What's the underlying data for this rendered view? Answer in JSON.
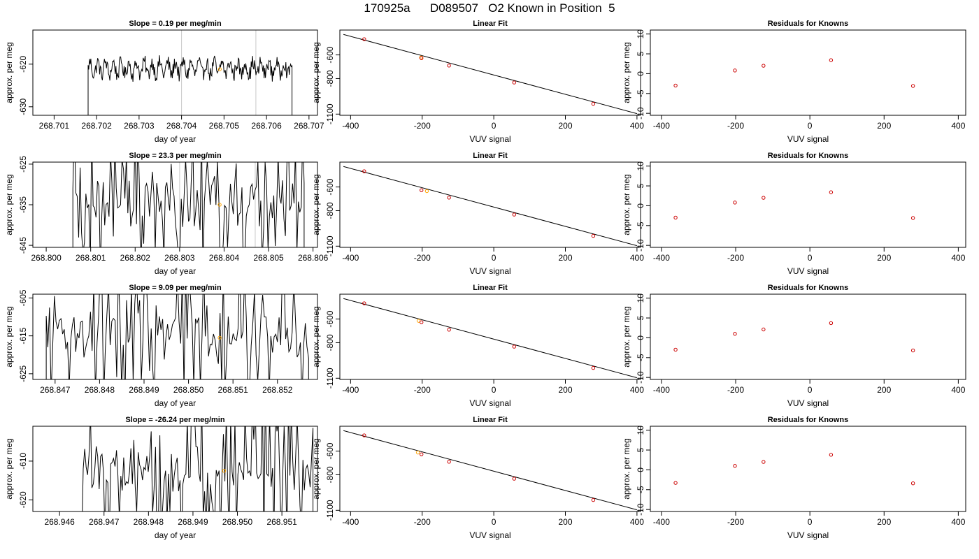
{
  "title": "170925a      D089507   O2 Known in Position  5",
  "colors": {
    "trace": "#000000",
    "known_points": "#cc0000",
    "sample_point": "#ffa500",
    "marker_lines": "#c8c8c8",
    "fit_line": "#000000"
  },
  "chart_data": [
    {
      "type": "line",
      "row": 1,
      "panel": "time-series",
      "title": "Slope =  0.19  per meg/min",
      "xlabel": "day of year",
      "ylabel": "approx. per meg",
      "xlim": [
        268.7005,
        268.7072
      ],
      "ylim": [
        -632,
        -612
      ],
      "xticks": [
        268.701,
        268.702,
        268.703,
        268.704,
        268.705,
        268.706,
        268.707
      ],
      "yticks": [
        -630,
        -620
      ],
      "markers": [
        268.704,
        268.70575
      ],
      "sample_point": {
        "x": 268.7049,
        "y": -621.2
      },
      "series": [
        {
          "x_start": 268.7018,
          "x_end": 268.7066,
          "baseline": -621,
          "amplitude": 2.5,
          "style": "smooth",
          "edge_dip": -640
        }
      ]
    },
    {
      "type": "scatter",
      "row": 1,
      "panel": "linear-fit",
      "title": "Linear Fit",
      "xlabel": "VUV signal",
      "ylabel": "approx. per meg",
      "xlim": [
        -430,
        410
      ],
      "ylim": [
        -1110,
        -390
      ],
      "xticks": [
        -400,
        -200,
        0,
        200,
        400
      ],
      "yticks": [
        -1100,
        -800,
        -600
      ],
      "fit": {
        "x": [
          -420,
          400
        ],
        "y": [
          -427,
          -1096
        ]
      },
      "knowns": {
        "x": [
          -362,
          -202,
          -125,
          57,
          278
        ],
        "y": [
          -467,
          -627,
          -690,
          -833,
          -1013
        ]
      },
      "sample": {
        "x": -203,
        "y": -622
      }
    },
    {
      "type": "scatter",
      "row": 1,
      "panel": "residuals",
      "title": "Residuals for Knowns",
      "xlabel": "VUV signal",
      "ylabel": "approx. per meg",
      "xlim": [
        -430,
        420
      ],
      "ylim": [
        -10.5,
        11
      ],
      "xticks": [
        -400,
        -200,
        0,
        200,
        400
      ],
      "yticks": [
        -10,
        -5,
        0,
        5,
        10
      ],
      "knowns": {
        "x": [
          -362,
          -202,
          -125,
          57,
          278
        ],
        "y": [
          -3.0,
          0.8,
          2.0,
          3.4,
          -3.1
        ]
      }
    },
    {
      "type": "line",
      "row": 2,
      "panel": "time-series",
      "title": "Slope =  23.3  per meg/min",
      "xlabel": "day of year",
      "ylabel": "approx. per meg",
      "xlim": [
        268.7997,
        268.8061
      ],
      "ylim": [
        -645.5,
        -624.5
      ],
      "xticks": [
        268.8,
        268.801,
        268.802,
        268.803,
        268.804,
        268.805,
        268.806
      ],
      "yticks": [
        -645,
        -635,
        -625
      ],
      "markers": [
        268.803,
        268.8047
      ],
      "sample_point": {
        "x": 268.8039,
        "y": -635
      },
      "series": [
        {
          "x_start": 268.8006,
          "x_end": 268.8058,
          "baseline": -635,
          "amplitude": 40,
          "style": "noisy",
          "edge_dip": -660
        }
      ]
    },
    {
      "type": "scatter",
      "row": 2,
      "panel": "linear-fit",
      "title": "Linear Fit",
      "xlabel": "VUV signal",
      "ylabel": "approx. per meg",
      "xlim": [
        -430,
        410
      ],
      "ylim": [
        -1110,
        -390
      ],
      "xticks": [
        -400,
        -200,
        0,
        200,
        400
      ],
      "yticks": [
        -1100,
        -800,
        -600
      ],
      "fit": {
        "x": [
          -420,
          400
        ],
        "y": [
          -427,
          -1096
        ]
      },
      "knowns": {
        "x": [
          -362,
          -202,
          -125,
          57,
          278
        ],
        "y": [
          -467,
          -627,
          -690,
          -833,
          -1013
        ]
      },
      "sample": {
        "x": -187,
        "y": -635
      }
    },
    {
      "type": "scatter",
      "row": 2,
      "panel": "residuals",
      "title": "Residuals for Knowns",
      "xlabel": "VUV signal",
      "ylabel": "approx. per meg",
      "xlim": [
        -430,
        420
      ],
      "ylim": [
        -10.5,
        11
      ],
      "xticks": [
        -400,
        -200,
        0,
        200,
        400
      ],
      "yticks": [
        -10,
        -5,
        0,
        5,
        10
      ],
      "knowns": {
        "x": [
          -362,
          -202,
          -125,
          57,
          278
        ],
        "y": [
          -3.0,
          0.8,
          2.0,
          3.4,
          -3.1
        ]
      }
    },
    {
      "type": "line",
      "row": 3,
      "panel": "time-series",
      "title": "Slope =  9.09  per meg/min",
      "xlabel": "day of year",
      "ylabel": "approx. per meg",
      "xlim": [
        268.8465,
        268.8529
      ],
      "ylim": [
        -626.5,
        -604
      ],
      "xticks": [
        268.847,
        268.848,
        268.849,
        268.85,
        268.851,
        268.852
      ],
      "yticks": [
        -625,
        -615,
        -605
      ],
      "markers": [],
      "sample_point": {
        "x": 268.8507,
        "y": -615.5
      },
      "series": [
        {
          "x_start": 268.8468,
          "x_end": 268.8527,
          "baseline": -615,
          "amplitude": 40,
          "style": "noisy",
          "edge_dip": -640
        }
      ]
    },
    {
      "type": "scatter",
      "row": 3,
      "panel": "linear-fit",
      "title": "Linear Fit",
      "xlabel": "VUV signal",
      "ylabel": "approx. per meg",
      "xlim": [
        -430,
        410
      ],
      "ylim": [
        -1110,
        -390
      ],
      "xticks": [
        -400,
        -200,
        0,
        200,
        400
      ],
      "yticks": [
        -1100,
        -800,
        -600
      ],
      "fit": {
        "x": [
          -420,
          400
        ],
        "y": [
          -427,
          -1096
        ]
      },
      "knowns": {
        "x": [
          -362,
          -202,
          -125,
          57,
          278
        ],
        "y": [
          -467,
          -627,
          -690,
          -833,
          -1013
        ]
      },
      "sample": {
        "x": -210,
        "y": -615
      }
    },
    {
      "type": "scatter",
      "row": 3,
      "panel": "residuals",
      "title": "Residuals for Knowns",
      "xlabel": "VUV signal",
      "ylabel": "approx. per meg",
      "xlim": [
        -430,
        420
      ],
      "ylim": [
        -10.5,
        11
      ],
      "xticks": [
        -400,
        -200,
        0,
        200,
        400
      ],
      "yticks": [
        -10,
        -5,
        0,
        5,
        10
      ],
      "knowns": {
        "x": [
          -362,
          -202,
          -125,
          57,
          278
        ],
        "y": [
          -3.0,
          1.0,
          2.1,
          3.7,
          -3.2
        ]
      }
    },
    {
      "type": "line",
      "row": 4,
      "panel": "time-series",
      "title": "Slope =  -26.24  per meg/min",
      "xlabel": "day of year",
      "ylabel": "approx. per meg",
      "xlim": [
        268.9454,
        268.9518
      ],
      "ylim": [
        -623,
        -601
      ],
      "xticks": [
        268.946,
        268.947,
        268.948,
        268.949,
        268.95,
        268.951
      ],
      "yticks": [
        -620,
        -610
      ],
      "markers": [],
      "sample_point": {
        "x": 268.9497,
        "y": -612.5
      },
      "series": [
        {
          "x_start": 268.9465,
          "x_end": 268.9517,
          "baseline": -612,
          "amplitude": 40,
          "style": "noisy",
          "edge_dip": -640
        }
      ]
    },
    {
      "type": "scatter",
      "row": 4,
      "panel": "linear-fit",
      "title": "Linear Fit",
      "xlabel": "VUV signal",
      "ylabel": "approx. per meg",
      "xlim": [
        -430,
        410
      ],
      "ylim": [
        -1110,
        -390
      ],
      "xticks": [
        -400,
        -200,
        0,
        200,
        400
      ],
      "yticks": [
        -1100,
        -800,
        -600
      ],
      "fit": {
        "x": [
          -420,
          400
        ],
        "y": [
          -427,
          -1096
        ]
      },
      "knowns": {
        "x": [
          -362,
          -202,
          -125,
          57,
          278
        ],
        "y": [
          -467,
          -627,
          -690,
          -833,
          -1013
        ]
      },
      "sample": {
        "x": -212,
        "y": -612
      }
    },
    {
      "type": "scatter",
      "row": 4,
      "panel": "residuals",
      "title": "Residuals for Knowns",
      "xlabel": "VUV signal",
      "ylabel": "approx. per meg",
      "xlim": [
        -430,
        420
      ],
      "ylim": [
        -10.5,
        11
      ],
      "xticks": [
        -400,
        -200,
        0,
        200,
        400
      ],
      "yticks": [
        -10,
        -5,
        0,
        5,
        10
      ],
      "knowns": {
        "x": [
          -362,
          -202,
          -125,
          57,
          278
        ],
        "y": [
          -3.3,
          1.0,
          2.0,
          3.8,
          -3.4
        ]
      }
    }
  ]
}
